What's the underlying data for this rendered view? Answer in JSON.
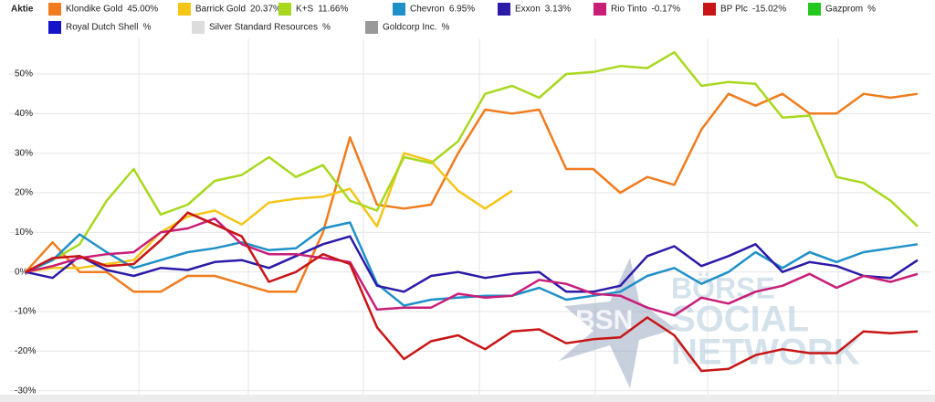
{
  "legend_title": "Aktie",
  "watermark": {
    "badge": "BSN",
    "lines": [
      "BÖRSE",
      "SOCIAL",
      "NETWORK"
    ]
  },
  "chart_data": {
    "type": "line",
    "categories": [
      null,
      null,
      null,
      null,
      null,
      null,
      null,
      null,
      null,
      null,
      null,
      null,
      null,
      null,
      null,
      null,
      null,
      null,
      null,
      null,
      null,
      null,
      null,
      null,
      null,
      null,
      null,
      null,
      null,
      null,
      null,
      null,
      null,
      null
    ],
    "ylim": [
      -31,
      59
    ],
    "yticks": [
      {
        "value": 50,
        "label": "50%"
      },
      {
        "value": 40,
        "label": "40%"
      },
      {
        "value": 30,
        "label": "30%"
      },
      {
        "value": 20,
        "label": "20%"
      },
      {
        "value": 10,
        "label": "10%"
      },
      {
        "value": 0,
        "label": "0%"
      },
      {
        "value": -10,
        "label": "-10%"
      },
      {
        "value": -20,
        "label": "-20%"
      },
      {
        "value": -30,
        "label": "-30%"
      }
    ],
    "grid": true,
    "series": [
      {
        "name": "Klondike Gold",
        "legend_value": "45.00%",
        "color": "#f07c1e",
        "values": [
          0,
          7.5,
          0,
          0,
          -5,
          -5,
          -1,
          -1,
          -3,
          -5,
          -5,
          10,
          34,
          17,
          16,
          17,
          30,
          41,
          40,
          41,
          26,
          26,
          20,
          24,
          22,
          36,
          45,
          42,
          45,
          40,
          40,
          45,
          44,
          45
        ]
      },
      {
        "name": "Barrick Gold",
        "legend_value": "20.37%",
        "color": "#f5c518",
        "values": [
          0,
          1,
          1,
          2,
          3,
          10,
          14,
          15.5,
          12,
          17.5,
          18.5,
          19,
          21,
          11.5,
          30,
          28,
          20.5,
          16,
          20.5,
          null,
          null,
          null,
          null,
          null,
          null,
          null,
          null,
          null,
          null,
          null,
          null,
          null,
          null,
          null
        ]
      },
      {
        "name": "K+S",
        "legend_value": "11.66%",
        "color": "#a8d81e",
        "values": [
          0,
          3,
          7,
          18,
          26,
          14.5,
          17,
          23,
          24.5,
          29,
          24,
          27,
          18,
          15.5,
          29,
          27.5,
          33,
          45,
          47,
          44,
          50,
          50.5,
          52,
          51.5,
          55.5,
          47,
          48,
          47.5,
          39,
          39.5,
          24,
          22.5,
          18,
          11.5
        ]
      },
      {
        "name": "Chevron",
        "legend_value": "6.95%",
        "color": "#1e90c8",
        "values": [
          0,
          3,
          9.5,
          5,
          1,
          3,
          5,
          6,
          7.5,
          5.5,
          6,
          11,
          12.5,
          -3,
          -8.5,
          -7,
          -6.5,
          -6,
          -6,
          -4,
          -7,
          -6,
          -5,
          -1,
          1,
          -3,
          0,
          5,
          1,
          5,
          2.5,
          5,
          6,
          7
        ]
      },
      {
        "name": "Exxon",
        "legend_value": "3.13%",
        "color": "#2c1aa8",
        "values": [
          0,
          -1.5,
          4,
          0.5,
          -1,
          1,
          0.5,
          2.5,
          3,
          1,
          4,
          7,
          9,
          -3.5,
          -5,
          -1,
          0,
          -1.5,
          -0.5,
          0,
          -5,
          -5,
          -3.5,
          4,
          6.5,
          1.5,
          4,
          7,
          0,
          2.5,
          1.5,
          -1,
          -1.5,
          3
        ]
      },
      {
        "name": "Rio Tinto",
        "legend_value": "-0.17%",
        "color": "#c81e78",
        "values": [
          0,
          1.5,
          3.5,
          4.5,
          5,
          10,
          11,
          13.5,
          7,
          4.5,
          4.5,
          3.5,
          2.5,
          -9.5,
          -9,
          -9,
          -5.5,
          -6.5,
          -6,
          -2,
          -3,
          -5.5,
          -6,
          -9,
          -11,
          -6.5,
          -8,
          -5,
          -3.5,
          -0.5,
          -4,
          -1,
          -2.5,
          -0.5
        ]
      },
      {
        "name": "BP Plc",
        "legend_value": "-15.02%",
        "color": "#c81414",
        "values": [
          0,
          3.5,
          4,
          1.5,
          2,
          8,
          15,
          12,
          9,
          -2.5,
          0,
          4.5,
          2,
          -14,
          -22,
          -17.5,
          -16,
          -19.5,
          -15,
          -14.5,
          -18,
          -17,
          -16.5,
          -11.5,
          -16,
          -25,
          -24.5,
          -21,
          -19.5,
          -20.5,
          -20.5,
          -15,
          -15.5,
          -15
        ]
      },
      {
        "name": "Gazprom",
        "legend_value": "%",
        "color": "#22c81e",
        "values": [
          null,
          null,
          null,
          null,
          null,
          null,
          null,
          null,
          null,
          null,
          null,
          null,
          null,
          null,
          null,
          null,
          null,
          null,
          null,
          null,
          null,
          null,
          null,
          null,
          null,
          null,
          null,
          null,
          null,
          null,
          null,
          null,
          null,
          null
        ]
      },
      {
        "name": "Royal Dutch Shell",
        "legend_value": "%",
        "color": "#1414c8",
        "values": [
          null,
          null,
          null,
          null,
          null,
          null,
          null,
          null,
          null,
          null,
          null,
          null,
          null,
          null,
          null,
          null,
          null,
          null,
          null,
          null,
          null,
          null,
          null,
          null,
          null,
          null,
          null,
          null,
          null,
          null,
          null,
          null,
          null,
          null
        ]
      },
      {
        "name": "Silver Standard Resources",
        "legend_value": "%",
        "color": "#dcdcdc",
        "values": [
          null,
          null,
          null,
          null,
          null,
          null,
          null,
          null,
          null,
          null,
          null,
          null,
          null,
          null,
          null,
          null,
          null,
          null,
          null,
          null,
          null,
          null,
          null,
          null,
          null,
          null,
          null,
          null,
          null,
          null,
          null,
          null,
          null,
          null
        ]
      },
      {
        "name": "Goldcorp Inc.",
        "legend_value": "%",
        "color": "#999999",
        "values": [
          null,
          null,
          null,
          null,
          null,
          null,
          null,
          null,
          null,
          null,
          null,
          null,
          null,
          null,
          null,
          null,
          null,
          null,
          null,
          null,
          null,
          null,
          null,
          null,
          null,
          null,
          null,
          null,
          null,
          null,
          null,
          null,
          null,
          null
        ]
      }
    ]
  }
}
